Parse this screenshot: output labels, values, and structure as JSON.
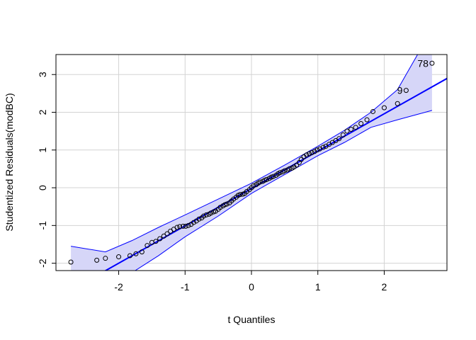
{
  "chart_data": {
    "type": "scatter",
    "xlabel": "t Quantiles",
    "ylabel": "Studentized Residuals(modBC)",
    "xlim": [
      -2.945,
      2.945
    ],
    "ylim": [
      -2.195,
      3.53
    ],
    "xticks": [
      -2,
      -1,
      0,
      1,
      2
    ],
    "yticks": [
      -2,
      -1,
      0,
      1,
      2,
      3
    ],
    "grid": true,
    "series": [
      {
        "color": "#000000",
        "x": [
          -2.72,
          -2.33,
          -2.2,
          -2.0,
          -1.83,
          -1.74,
          -1.65,
          -1.57,
          -1.5,
          -1.44,
          -1.38,
          -1.32,
          -1.27,
          -1.22,
          -1.17,
          -1.12,
          -1.08,
          -1.03,
          -0.99,
          -0.95,
          -0.91,
          -0.87,
          -0.83,
          -0.79,
          -0.75,
          -0.72,
          -0.68,
          -0.64,
          -0.61,
          -0.57,
          -0.54,
          -0.5,
          -0.47,
          -0.43,
          -0.4,
          -0.37,
          -0.33,
          -0.3,
          -0.27,
          -0.23,
          -0.2,
          -0.17,
          -0.13,
          -0.1,
          -0.07,
          -0.03,
          0,
          0.03,
          0.07,
          0.1,
          0.13,
          0.17,
          0.2,
          0.23,
          0.27,
          0.3,
          0.33,
          0.37,
          0.4,
          0.43,
          0.47,
          0.5,
          0.54,
          0.57,
          0.61,
          0.64,
          0.68,
          0.72,
          0.75,
          0.79,
          0.83,
          0.87,
          0.91,
          0.95,
          0.99,
          1.03,
          1.08,
          1.12,
          1.17,
          1.22,
          1.27,
          1.32,
          1.38,
          1.44,
          1.5,
          1.57,
          1.65,
          1.74,
          1.83,
          2.0,
          2.2,
          2.33,
          2.72
        ],
        "values": [
          -1.97,
          -1.92,
          -1.87,
          -1.83,
          -1.8,
          -1.75,
          -1.7,
          -1.53,
          -1.45,
          -1.42,
          -1.35,
          -1.28,
          -1.22,
          -1.15,
          -1.1,
          -1.05,
          -1.03,
          -1.02,
          -1.02,
          -1.0,
          -0.97,
          -0.92,
          -0.88,
          -0.83,
          -0.8,
          -0.75,
          -0.72,
          -0.7,
          -0.67,
          -0.64,
          -0.62,
          -0.57,
          -0.52,
          -0.48,
          -0.45,
          -0.43,
          -0.4,
          -0.35,
          -0.3,
          -0.25,
          -0.2,
          -0.18,
          -0.17,
          -0.15,
          -0.1,
          -0.05,
          0.0,
          0.05,
          0.08,
          0.12,
          0.15,
          0.17,
          0.2,
          0.22,
          0.25,
          0.28,
          0.3,
          0.33,
          0.37,
          0.4,
          0.42,
          0.45,
          0.47,
          0.5,
          0.52,
          0.55,
          0.6,
          0.67,
          0.75,
          0.82,
          0.87,
          0.9,
          0.93,
          0.96,
          1.0,
          1.03,
          1.07,
          1.1,
          1.15,
          1.2,
          1.25,
          1.3,
          1.4,
          1.5,
          1.55,
          1.6,
          1.7,
          1.8,
          2.02,
          2.12,
          2.23,
          2.58,
          3.3
        ]
      }
    ],
    "annotations": [
      {
        "text": "9",
        "x": 2.33,
        "y": 2.58
      },
      {
        "text": "78",
        "x": 2.72,
        "y": 3.3
      }
    ],
    "reference_line": {
      "intercept": -0.02,
      "slope": 0.99,
      "color": "#0000ff"
    },
    "envelope": {
      "color": "#0000ff",
      "fill": "#d6d6f8",
      "x": [
        -2.72,
        -2.2,
        -1.8,
        -1.4,
        -1.0,
        -0.5,
        0,
        0.5,
        1.0,
        1.4,
        1.8,
        2.2,
        2.72
      ],
      "upper": [
        -1.55,
        -1.7,
        -1.4,
        -1.05,
        -0.72,
        -0.3,
        0.12,
        0.6,
        1.1,
        1.52,
        2.0,
        2.6,
        4.2
      ],
      "lower": [
        -3.6,
        -2.75,
        -2.25,
        -1.8,
        -1.3,
        -0.75,
        -0.15,
        0.35,
        0.85,
        1.2,
        1.6,
        1.8,
        2.05
      ]
    }
  }
}
